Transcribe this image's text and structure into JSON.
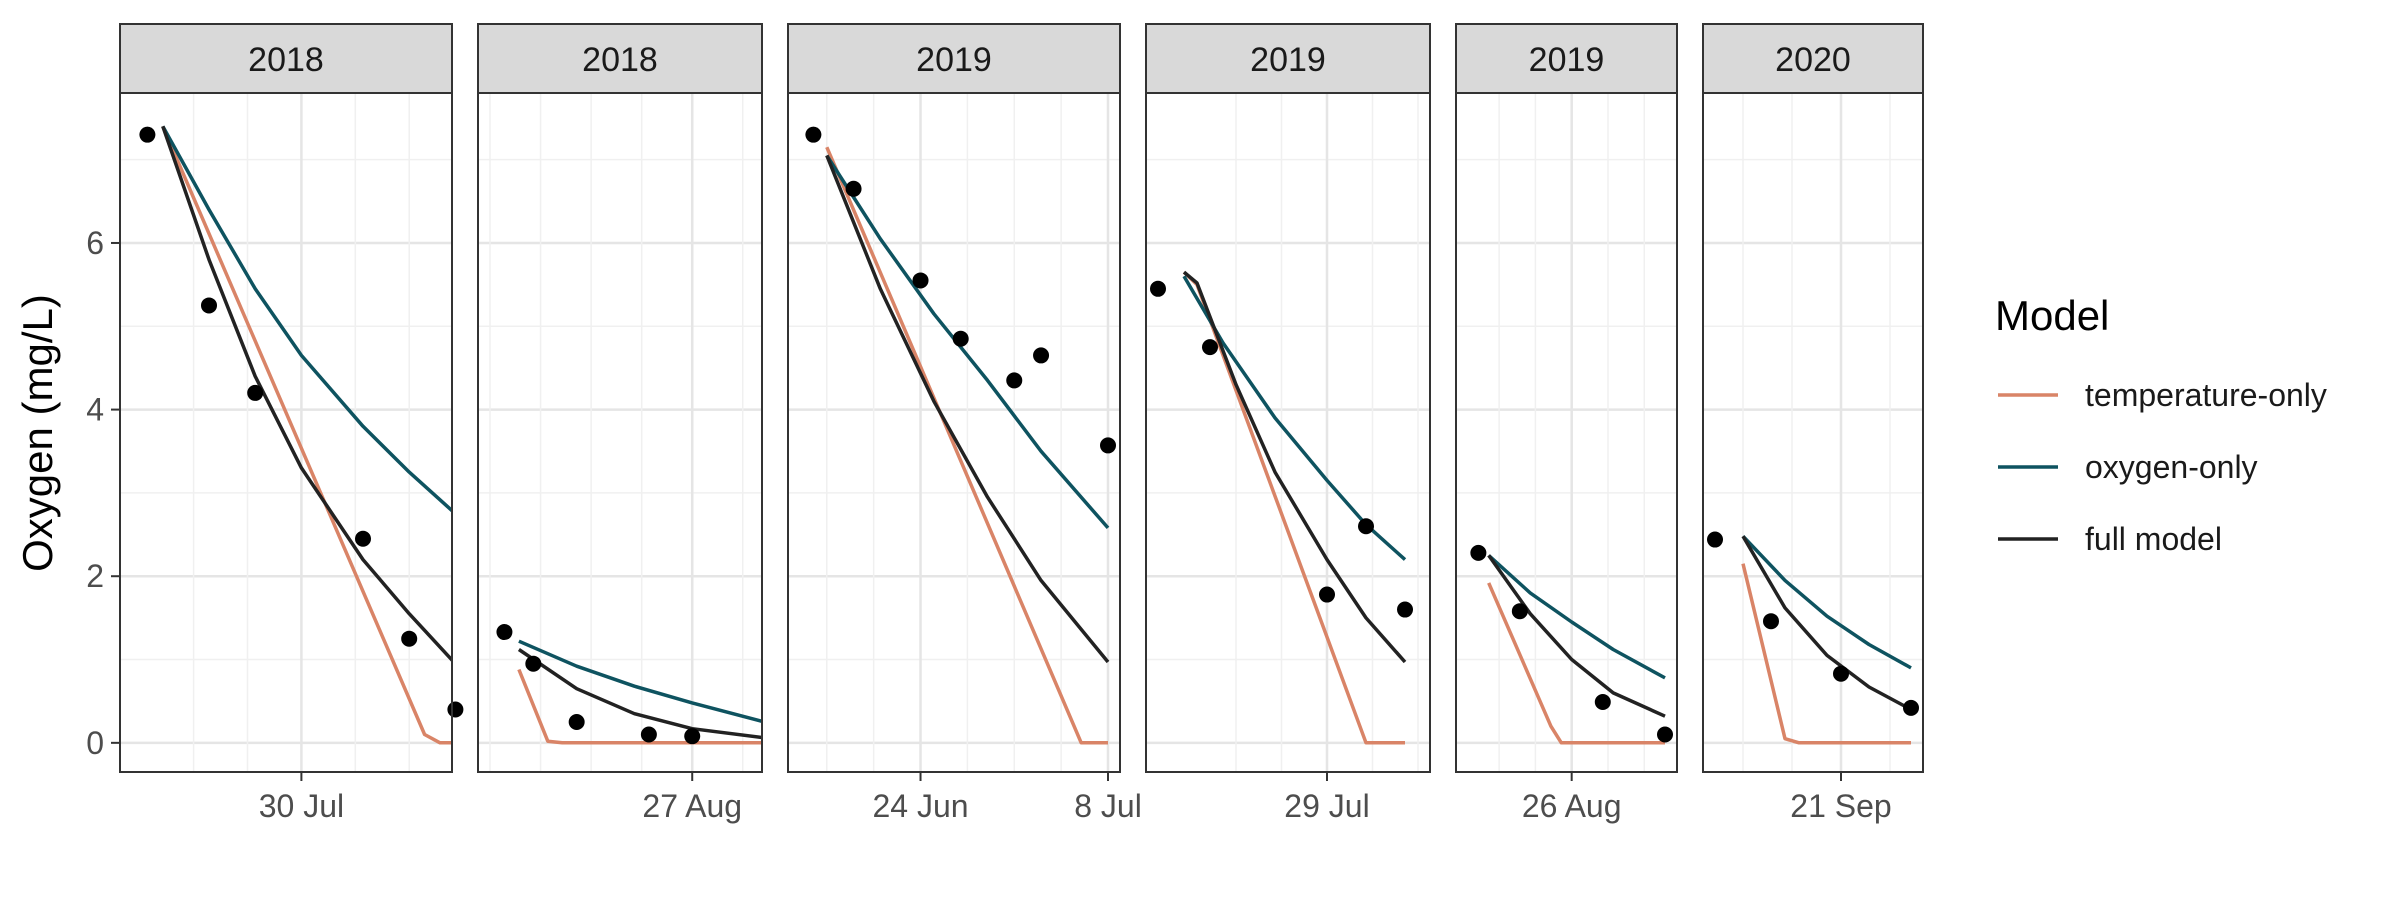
{
  "chart_data": {
    "type": "line",
    "ylabel": "Oxygen (mg/L)",
    "ylim": [
      -0.35,
      7.8
    ],
    "yticks": [
      0,
      2,
      4,
      6
    ],
    "grid": true,
    "legend": {
      "title": "Model",
      "placement": "right",
      "entries": [
        {
          "key": "temp",
          "label": "temperature-only",
          "color": "#D98467"
        },
        {
          "key": "oxy",
          "label": "oxygen-only",
          "color": "#0E5360"
        },
        {
          "key": "full",
          "label": "full model",
          "color": "#222222"
        }
      ]
    },
    "observed_color": "#000000",
    "panels": [
      {
        "strip": "2018",
        "xlim": [
          "2018-07-19",
          "2018-08-08"
        ],
        "xticks": [
          {
            "date": "2018-07-30",
            "label": "30 Jul"
          }
        ],
        "observed": [
          [
            "2018-07-20",
            7.3
          ],
          [
            "2018-07-24",
            5.25
          ],
          [
            "2018-07-27",
            4.2
          ],
          [
            "2018-08-03",
            2.45
          ],
          [
            "2018-08-06",
            1.25
          ],
          [
            "2018-08-09",
            0.4
          ]
        ],
        "series": {
          "temp": [
            [
              "2018-07-21",
              7.4
            ],
            [
              "2018-08-07",
              0.1
            ],
            [
              "2018-08-08",
              0.0
            ],
            [
              "2018-08-09",
              0.0
            ]
          ],
          "oxy": [
            [
              "2018-07-21",
              7.4
            ],
            [
              "2018-07-24",
              6.4
            ],
            [
              "2018-07-27",
              5.45
            ],
            [
              "2018-07-30",
              4.65
            ],
            [
              "2018-08-03",
              3.8
            ],
            [
              "2018-08-06",
              3.25
            ],
            [
              "2018-08-09",
              2.75
            ]
          ],
          "full": [
            [
              "2018-07-21",
              7.4
            ],
            [
              "2018-07-24",
              5.8
            ],
            [
              "2018-07-27",
              4.4
            ],
            [
              "2018-07-30",
              3.3
            ],
            [
              "2018-08-03",
              2.2
            ],
            [
              "2018-08-06",
              1.55
            ],
            [
              "2018-08-09",
              0.95
            ]
          ]
        }
      },
      {
        "strip": "2018",
        "xlim": [
          "2018-08-13",
          "2018-08-31"
        ],
        "xticks": [
          {
            "date": "2018-08-27",
            "label": "27 Aug"
          }
        ],
        "observed": [
          [
            "2018-08-14",
            1.33
          ],
          [
            "2018-08-16",
            0.95
          ],
          [
            "2018-08-19",
            0.25
          ],
          [
            "2018-08-24",
            0.1
          ],
          [
            "2018-08-27",
            0.08
          ]
        ],
        "series": {
          "temp": [
            [
              "2018-08-15",
              0.88
            ],
            [
              "2018-08-17",
              0.02
            ],
            [
              "2018-08-18",
              0.0
            ],
            [
              "2018-09-01",
              0.0
            ]
          ],
          "oxy": [
            [
              "2018-08-15",
              1.22
            ],
            [
              "2018-08-19",
              0.92
            ],
            [
              "2018-08-23",
              0.68
            ],
            [
              "2018-08-27",
              0.48
            ],
            [
              "2018-09-01",
              0.25
            ]
          ],
          "full": [
            [
              "2018-08-15",
              1.12
            ],
            [
              "2018-08-19",
              0.65
            ],
            [
              "2018-08-23",
              0.35
            ],
            [
              "2018-08-27",
              0.17
            ],
            [
              "2018-09-01",
              0.06
            ]
          ]
        }
      },
      {
        "strip": "2019",
        "xlim": [
          "2019-06-15",
          "2019-07-08"
        ],
        "xticks": [
          {
            "date": "2019-06-24",
            "label": "24 Jun"
          },
          {
            "date": "2019-07-08",
            "label": "8 Jul"
          }
        ],
        "observed": [
          [
            "2019-06-16",
            7.3
          ],
          [
            "2019-06-19",
            6.65
          ],
          [
            "2019-06-24",
            5.55
          ],
          [
            "2019-06-27",
            4.85
          ],
          [
            "2019-07-01",
            4.35
          ],
          [
            "2019-07-03",
            4.65
          ],
          [
            "2019-07-08",
            3.57
          ]
        ],
        "series": {
          "temp": [
            [
              "2019-06-17",
              7.15
            ],
            [
              "2019-07-06",
              0.0
            ],
            [
              "2019-07-08",
              0.0
            ]
          ],
          "oxy": [
            [
              "2019-06-17",
              7.05
            ],
            [
              "2019-06-21",
              6.05
            ],
            [
              "2019-06-25",
              5.15
            ],
            [
              "2019-06-29",
              4.35
            ],
            [
              "2019-07-03",
              3.5
            ],
            [
              "2019-07-08",
              2.58
            ]
          ],
          "full": [
            [
              "2019-06-17",
              7.05
            ],
            [
              "2019-06-21",
              5.45
            ],
            [
              "2019-06-25",
              4.1
            ],
            [
              "2019-06-29",
              2.95
            ],
            [
              "2019-07-03",
              1.95
            ],
            [
              "2019-07-08",
              0.97
            ]
          ]
        }
      },
      {
        "strip": "2019",
        "xlim": [
          "2019-07-16",
          "2019-08-05"
        ],
        "xticks": [
          {
            "date": "2019-07-29",
            "label": "29 Jul"
          }
        ],
        "observed": [
          [
            "2019-07-16",
            5.45
          ],
          [
            "2019-07-20",
            4.75
          ],
          [
            "2019-07-29",
            1.78
          ],
          [
            "2019-08-01",
            2.6
          ],
          [
            "2019-08-04",
            1.6
          ]
        ],
        "series": {
          "temp": [
            [
              "2019-07-18",
              5.65
            ],
            [
              "2019-07-19",
              5.5
            ],
            [
              "2019-08-01",
              0.0
            ],
            [
              "2019-08-04",
              0.0
            ]
          ],
          "oxy": [
            [
              "2019-07-18",
              5.6
            ],
            [
              "2019-07-21",
              4.8
            ],
            [
              "2019-07-25",
              3.9
            ],
            [
              "2019-07-29",
              3.15
            ],
            [
              "2019-08-01",
              2.62
            ],
            [
              "2019-08-04",
              2.2
            ]
          ],
          "full": [
            [
              "2019-07-18",
              5.65
            ],
            [
              "2019-07-19",
              5.52
            ],
            [
              "2019-07-22",
              4.3
            ],
            [
              "2019-07-25",
              3.25
            ],
            [
              "2019-07-29",
              2.2
            ],
            [
              "2019-08-01",
              1.5
            ],
            [
              "2019-08-04",
              0.97
            ]
          ]
        }
      },
      {
        "strip": "2019",
        "xlim": [
          "2019-08-16",
          "2019-09-04"
        ],
        "xticks": [
          {
            "date": "2019-08-26",
            "label": "26 Aug"
          }
        ],
        "observed": [
          [
            "2019-08-17",
            2.28
          ],
          [
            "2019-08-21",
            1.58
          ],
          [
            "2019-08-29",
            0.49
          ],
          [
            "2019-09-04",
            0.1
          ]
        ],
        "series": {
          "temp": [
            [
              "2019-08-18",
              1.92
            ],
            [
              "2019-08-24",
              0.2
            ],
            [
              "2019-08-25",
              0.0
            ],
            [
              "2019-09-04",
              0.0
            ]
          ],
          "oxy": [
            [
              "2019-08-18",
              2.25
            ],
            [
              "2019-08-22",
              1.8
            ],
            [
              "2019-08-26",
              1.45
            ],
            [
              "2019-08-30",
              1.12
            ],
            [
              "2019-09-04",
              0.78
            ]
          ],
          "full": [
            [
              "2019-08-18",
              2.25
            ],
            [
              "2019-08-22",
              1.55
            ],
            [
              "2019-08-26",
              1.0
            ],
            [
              "2019-08-30",
              0.6
            ],
            [
              "2019-09-04",
              0.32
            ]
          ]
        }
      },
      {
        "strip": "2020",
        "xlim": [
          "2020-09-12",
          "2020-09-26"
        ],
        "xticks": [
          {
            "date": "2020-09-21",
            "label": "21 Sep"
          }
        ],
        "observed": [
          [
            "2020-09-12",
            2.44
          ],
          [
            "2020-09-16",
            1.46
          ],
          [
            "2020-09-21",
            0.83
          ],
          [
            "2020-09-26",
            0.42
          ]
        ],
        "series": {
          "temp": [
            [
              "2020-09-14",
              2.15
            ],
            [
              "2020-09-17",
              0.05
            ],
            [
              "2020-09-18",
              0.0
            ],
            [
              "2020-09-26",
              0.0
            ]
          ],
          "oxy": [
            [
              "2020-09-14",
              2.48
            ],
            [
              "2020-09-17",
              1.95
            ],
            [
              "2020-09-20",
              1.52
            ],
            [
              "2020-09-23",
              1.18
            ],
            [
              "2020-09-26",
              0.9
            ]
          ],
          "full": [
            [
              "2020-09-14",
              2.48
            ],
            [
              "2020-09-17",
              1.62
            ],
            [
              "2020-09-20",
              1.05
            ],
            [
              "2020-09-23",
              0.67
            ],
            [
              "2020-09-26",
              0.4
            ]
          ]
        }
      }
    ]
  }
}
